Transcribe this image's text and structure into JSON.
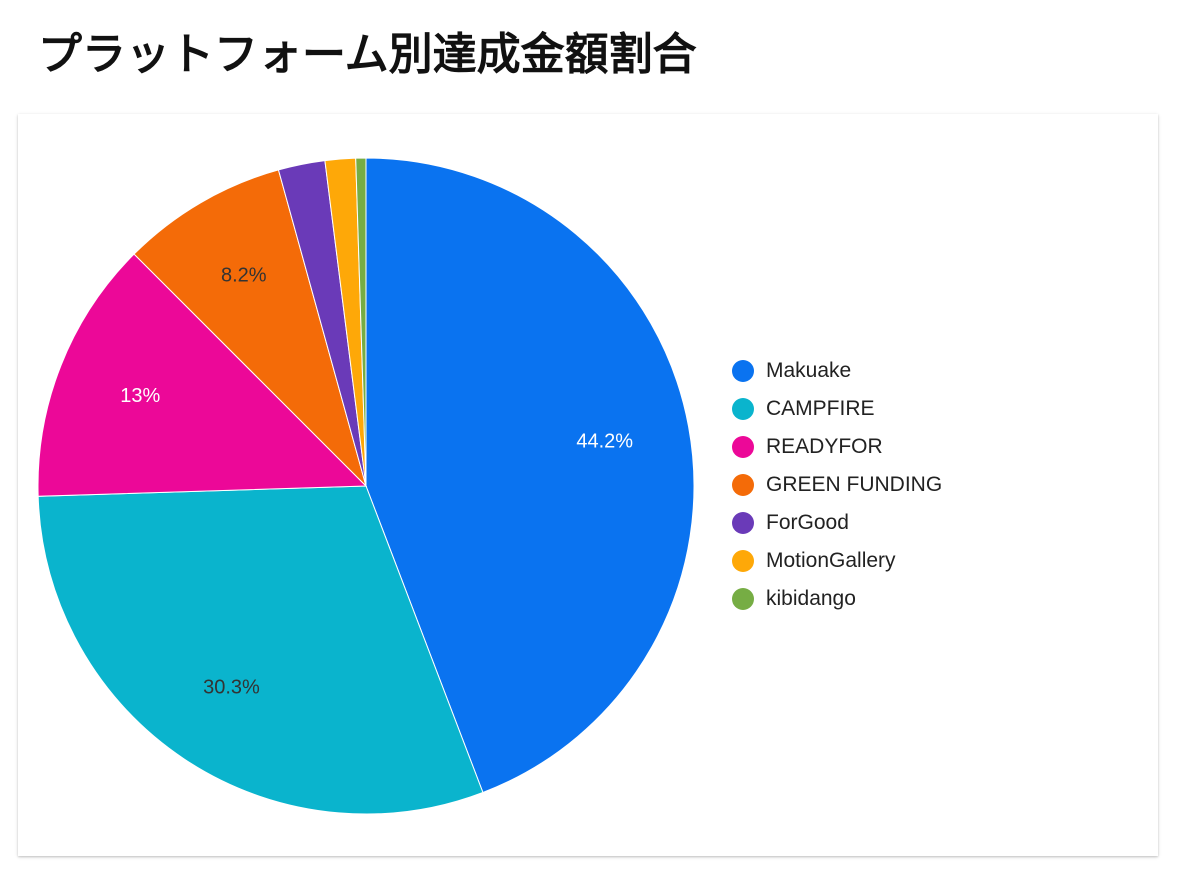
{
  "title": "プラットフォーム別達成金額割合",
  "chart_data": {
    "type": "pie",
    "title": "プラットフォーム別達成金額割合",
    "categories": [
      "Makuake",
      "CAMPFIRE",
      "READYFOR",
      "GREEN FUNDING",
      "ForGood",
      "MotionGallery",
      "kibidango"
    ],
    "values": [
      44.2,
      30.3,
      13.0,
      8.2,
      2.3,
      1.5,
      0.5
    ],
    "data_labels": [
      "44.2%",
      "30.3%",
      "13%",
      "8.2%",
      "",
      "",
      ""
    ],
    "colors": [
      "#0a73f0",
      "#0ab4cd",
      "#ec0898",
      "#f46b08",
      "#6a3ab8",
      "#fea808",
      "#76ad44"
    ],
    "label_colors": [
      "#ffffff",
      "#333333",
      "#ffffff",
      "#333333",
      "#ffffff",
      "#ffffff",
      "#ffffff"
    ],
    "legend_position": "right",
    "start_angle": "12 o'clock, clockwise"
  }
}
